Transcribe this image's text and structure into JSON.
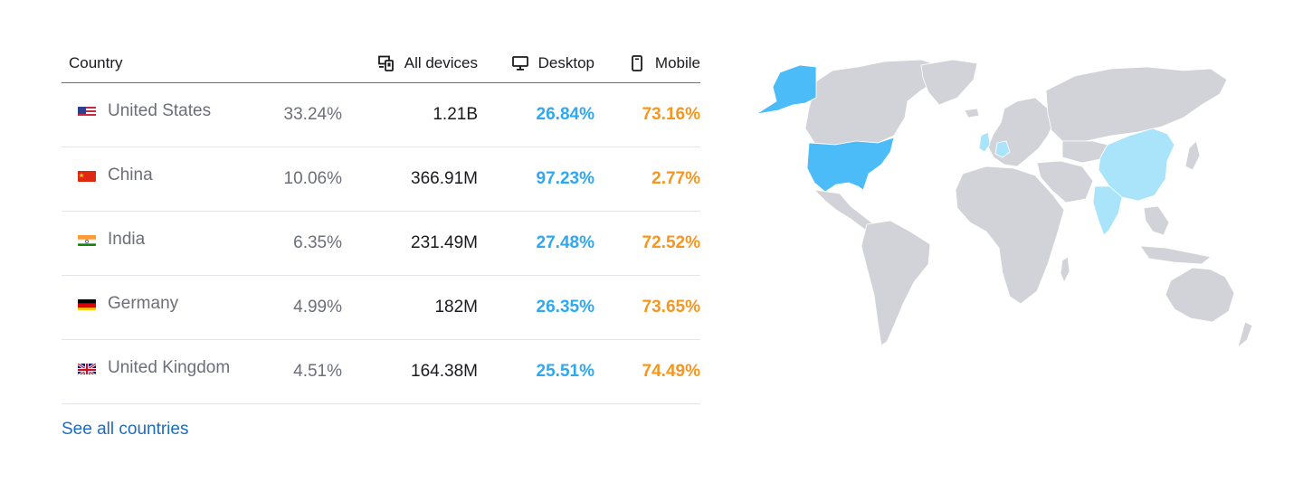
{
  "table": {
    "headers": {
      "country": "Country",
      "all_devices": "All devices",
      "desktop": "Desktop",
      "mobile": "Mobile"
    },
    "rows": [
      {
        "country": "United States",
        "share": "33.24%",
        "all_devices": "1.21B",
        "desktop": "26.84%",
        "mobile": "73.16%",
        "flag": "us-flag"
      },
      {
        "country": "China",
        "share": "10.06%",
        "all_devices": "366.91M",
        "desktop": "97.23%",
        "mobile": "2.77%",
        "flag": "cn-flag"
      },
      {
        "country": "India",
        "share": "6.35%",
        "all_devices": "231.49M",
        "desktop": "27.48%",
        "mobile": "72.52%",
        "flag": "in-flag"
      },
      {
        "country": "Germany",
        "share": "4.99%",
        "all_devices": "182M",
        "desktop": "26.35%",
        "mobile": "73.65%",
        "flag": "de-flag"
      },
      {
        "country": "United Kingdom",
        "share": "4.51%",
        "all_devices": "164.38M",
        "desktop": "25.51%",
        "mobile": "74.49%",
        "flag": "gb-flag"
      }
    ]
  },
  "see_all_link": "See all countries",
  "colors": {
    "desktop": "#2fa8f0",
    "mobile": "#f7961d",
    "link": "#1e6bbf",
    "map_land": "#d2d3d8",
    "map_highlight_strong": "#4bbcf7",
    "map_highlight_light": "#a9e4fb"
  },
  "icons": {
    "all_devices": "devices-icon",
    "desktop": "monitor-icon",
    "mobile": "phone-icon"
  }
}
